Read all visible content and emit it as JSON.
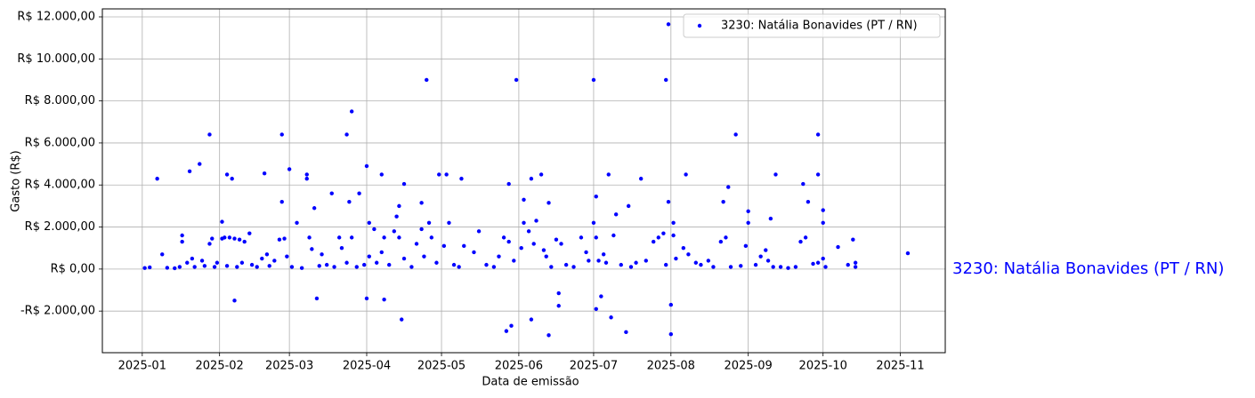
{
  "chart_data": {
    "type": "scatter",
    "xlabel": "Data de emissão",
    "ylabel": "Gasto (R$)",
    "annotation": "3230: Natália Bonavides (PT / RN)",
    "legend": "upper right",
    "grid": true,
    "xlim": [
      -16,
      322
    ],
    "xticks": [
      {
        "value": 0,
        "label": "2025-01"
      },
      {
        "value": 31,
        "label": "2025-02"
      },
      {
        "value": 59,
        "label": "2025-03"
      },
      {
        "value": 90,
        "label": "2025-04"
      },
      {
        "value": 120,
        "label": "2025-05"
      },
      {
        "value": 151,
        "label": "2025-06"
      },
      {
        "value": 181,
        "label": "2025-07"
      },
      {
        "value": 212,
        "label": "2025-08"
      },
      {
        "value": 243,
        "label": "2025-09"
      },
      {
        "value": 273,
        "label": "2025-10"
      },
      {
        "value": 304,
        "label": "2025-11"
      }
    ],
    "ylim": [
      -3980,
      12380
    ],
    "yticks": [
      {
        "value": -2000,
        "label": "-R$ 2.000,00"
      },
      {
        "value": 0,
        "label": "R$ 0,00"
      },
      {
        "value": 2000,
        "label": "R$ 2.000,00"
      },
      {
        "value": 4000,
        "label": "R$ 4.000,00"
      },
      {
        "value": 6000,
        "label": "R$ 6.000,00"
      },
      {
        "value": 8000,
        "label": "R$ 8.000,00"
      },
      {
        "value": 10000,
        "label": "R$ 10.000,00"
      },
      {
        "value": 12000,
        "label": "R$ 12.000,00"
      }
    ],
    "x": [
      6,
      19,
      23,
      27,
      32,
      34,
      36,
      37,
      49,
      56,
      56,
      59,
      66,
      66,
      69,
      70,
      76,
      82,
      84,
      83,
      87,
      90,
      90,
      96,
      97,
      104,
      105,
      103,
      114,
      112,
      119,
      122,
      128,
      146,
      148,
      147,
      150,
      153,
      156,
      156,
      160,
      163,
      163,
      167,
      167,
      181,
      182,
      182,
      184,
      187,
      188,
      194,
      200,
      210,
      211,
      212,
      212,
      211,
      218,
      235,
      238,
      243,
      252,
      254,
      265,
      271,
      271,
      273,
      279,
      285,
      307,
      1,
      3,
      8,
      10,
      13,
      15,
      16,
      16,
      18,
      20,
      21,
      24,
      25,
      27,
      28,
      29,
      30,
      32,
      33,
      34,
      35,
      37,
      38,
      39,
      40,
      41,
      43,
      44,
      46,
      48,
      50,
      51,
      53,
      55,
      57,
      58,
      60,
      62,
      64,
      67,
      68,
      71,
      72,
      74,
      77,
      79,
      80,
      82,
      84,
      86,
      89,
      91,
      91,
      93,
      94,
      96,
      97,
      99,
      101,
      102,
      103,
      105,
      108,
      110,
      112,
      113,
      115,
      116,
      118,
      121,
      123,
      125,
      127,
      129,
      133,
      135,
      138,
      141,
      143,
      145,
      147,
      149,
      152,
      153,
      155,
      157,
      158,
      161,
      162,
      164,
      166,
      168,
      170,
      173,
      176,
      178,
      179,
      181,
      182,
      183,
      185,
      186,
      189,
      190,
      192,
      195,
      196,
      198,
      202,
      205,
      207,
      209,
      210,
      213,
      213,
      214,
      217,
      219,
      222,
      224,
      227,
      229,
      232,
      233,
      234,
      236,
      240,
      242,
      243,
      246,
      248,
      250,
      251,
      253,
      256,
      259,
      262,
      264,
      266,
      267,
      269,
      271,
      273,
      273,
      274,
      283,
      286,
      286
    ],
    "series": [
      {
        "name": "3230: Natália Bonavides (PT / RN)",
        "color": "#0000ff",
        "values": [
          4300,
          4650,
          5000,
          6400,
          2250,
          4500,
          4300,
          -1500,
          4550,
          6400,
          3200,
          4750,
          4500,
          4300,
          2900,
          -1400,
          3600,
          6400,
          7500,
          3200,
          3600,
          -1400,
          4900,
          4500,
          -1450,
          -2400,
          4050,
          3000,
          9000,
          3150,
          4500,
          4500,
          4300,
          -2950,
          -2700,
          4050,
          9000,
          3300,
          -2400,
          4300,
          4500,
          -3150,
          3150,
          -1150,
          -1750,
          9000,
          3450,
          -1900,
          -1300,
          4500,
          -2300,
          -3000,
          4300,
          9000,
          11650,
          -3100,
          -1700,
          3200,
          4500,
          3900,
          6400,
          2750,
          2400,
          4500,
          4050,
          6400,
          4500,
          2800,
          1050,
          1400,
          750,
          50,
          80,
          700,
          60,
          40,
          100,
          1600,
          1300,
          300,
          500,
          100,
          400,
          150,
          1200,
          1450,
          100,
          300,
          1450,
          1500,
          150,
          1500,
          1450,
          100,
          1400,
          300,
          1300,
          1700,
          200,
          100,
          500,
          700,
          150,
          400,
          1400,
          1450,
          600,
          100,
          2200,
          50,
          1500,
          950,
          150,
          700,
          200,
          100,
          1500,
          1000,
          300,
          1500,
          100,
          200,
          2200,
          600,
          1900,
          300,
          800,
          1500,
          200,
          1800,
          2500,
          1500,
          500,
          100,
          1200,
          1900,
          600,
          2200,
          1500,
          300,
          1100,
          2200,
          200,
          100,
          1100,
          800,
          1800,
          200,
          100,
          600,
          1500,
          1300,
          400,
          1000,
          2200,
          1800,
          1200,
          2300,
          900,
          600,
          100,
          1400,
          1200,
          200,
          100,
          1500,
          800,
          400,
          2200,
          1500,
          400,
          700,
          300,
          1600,
          2600,
          200,
          3000,
          100,
          300,
          400,
          1300,
          1500,
          1700,
          200,
          2200,
          1600,
          500,
          1000,
          700,
          300,
          200,
          400,
          100,
          1300,
          3200,
          1500,
          100,
          150,
          1100,
          2200,
          200,
          600,
          900,
          400,
          100,
          100,
          50,
          100,
          1300,
          1500,
          3200,
          250,
          300,
          2200,
          500,
          100,
          200,
          300,
          100
        ]
      }
    ]
  }
}
